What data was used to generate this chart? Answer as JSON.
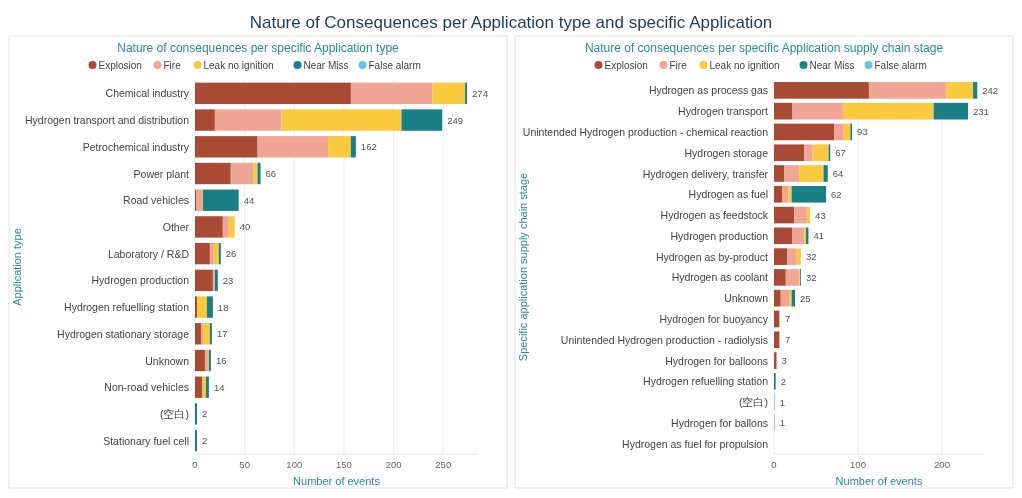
{
  "chart_data": [
    {
      "type": "bar",
      "orientation": "horizontal",
      "stacked": true,
      "title": "Nature of Consequences per Application type and specific Application",
      "subtitle": "Nature of consequences per specific Application type",
      "xlabel": "Number of events",
      "ylabel": "Application type",
      "legend": "top",
      "grid": "x",
      "categories": [
        "Chemical industry",
        "Hydrogen transport and distribution",
        "Petrochemical industry",
        "Power plant",
        "Road vehicles",
        "Other",
        "Laboratory / R&D",
        "Hydrogen production",
        "Hydrogen refuelling station",
        "Hydrogen stationary storage",
        "Unknown",
        "Non-road vehicles",
        "(空白)",
        "Stationary fuel cell"
      ],
      "series": [
        {
          "name": "Explosion",
          "color": "#a94a35",
          "values": [
            157,
            20,
            63,
            36,
            1,
            28,
            15,
            18,
            2,
            6,
            10,
            7,
            0,
            0
          ]
        },
        {
          "name": "Fire",
          "color": "#f0a595",
          "values": [
            82,
            67,
            71,
            23,
            6,
            6,
            4,
            2,
            0,
            2,
            3,
            1,
            0,
            0
          ]
        },
        {
          "name": "Leak no ignition",
          "color": "#f9c93e",
          "values": [
            33,
            121,
            23,
            4,
            1,
            6,
            5,
            0,
            10,
            7,
            1,
            3,
            0,
            0
          ]
        },
        {
          "name": "Near Miss",
          "color": "#1b7f87",
          "values": [
            2,
            41,
            5,
            3,
            36,
            0,
            2,
            3,
            6,
            2,
            2,
            3,
            2,
            2
          ]
        },
        {
          "name": "False alarm",
          "color": "#6cc4dc",
          "values": [
            0,
            0,
            0,
            0,
            0,
            0,
            0,
            0,
            0,
            0,
            0,
            0,
            0,
            0
          ]
        }
      ],
      "totals": [
        "274",
        "249",
        "162",
        "66",
        "44",
        "40",
        "26",
        "23",
        "18",
        "17",
        "16",
        "14",
        "2",
        "2"
      ],
      "xlim": [
        0,
        285
      ],
      "xticks": [
        0,
        50,
        100,
        150,
        200,
        250
      ]
    },
    {
      "type": "bar",
      "orientation": "horizontal",
      "stacked": true,
      "subtitle": "Nature of consequences per specific Application supply chain stage",
      "xlabel": "Number of events",
      "ylabel": "Specific application supply chain stage",
      "legend": "top",
      "grid": "x",
      "categories": [
        "Hydrogen as process gas",
        "Hydrogen transport",
        "Unintended Hydrogen production - chemical reaction",
        "Hydrogen storage",
        "Hydrogen delivery, transfer",
        "Hydrogen as fuel",
        "Hydrogen as feedstock",
        "Hydrogen production",
        "Hydrogen as by-product",
        "Hydrogen as coolant",
        "Unknown",
        "Hydrogen for buoyancy",
        "Unintended Hydrogen production - radiolysis",
        "Hydrogen for balloons",
        "Hydrogen refuelling station",
        "(空白)",
        "Hydrogen for ballons",
        "Hydrogen as fuel for propulsion"
      ],
      "series": [
        {
          "name": "Explosion",
          "color": "#a94a35",
          "values": [
            113,
            22,
            72,
            36,
            12,
            10,
            24,
            22,
            16,
            14,
            8,
            6,
            6,
            3,
            0,
            0,
            0,
            0
          ]
        },
        {
          "name": "Fire",
          "color": "#f0a595",
          "values": [
            92,
            60,
            11,
            10,
            18,
            7,
            15,
            14,
            11,
            16,
            10,
            1,
            1,
            0,
            0,
            1,
            1,
            0
          ]
        },
        {
          "name": "Leak no ignition",
          "color": "#f9c93e",
          "values": [
            32,
            108,
            8,
            19,
            29,
            4,
            4,
            2,
            5,
            1,
            3,
            0,
            0,
            0,
            0,
            0,
            0,
            0
          ]
        },
        {
          "name": "Near Miss",
          "color": "#1b7f87",
          "values": [
            5,
            41,
            2,
            2,
            5,
            41,
            0,
            3,
            0,
            1,
            4,
            0,
            0,
            0,
            2,
            0,
            0,
            0
          ]
        },
        {
          "name": "False alarm",
          "color": "#6cc4dc",
          "values": [
            0,
            0,
            0,
            0,
            0,
            0,
            0,
            0,
            0,
            0,
            0,
            0,
            0,
            0,
            0,
            0,
            0,
            0
          ]
        }
      ],
      "totals": [
        "242",
        "231",
        "93",
        "67",
        "64",
        "62",
        "43",
        "41",
        "32",
        "32",
        "25",
        "7",
        "7",
        "3",
        "2",
        "1",
        "1",
        null
      ],
      "xlim": [
        0,
        250
      ],
      "xticks": [
        0,
        100,
        200
      ]
    }
  ]
}
